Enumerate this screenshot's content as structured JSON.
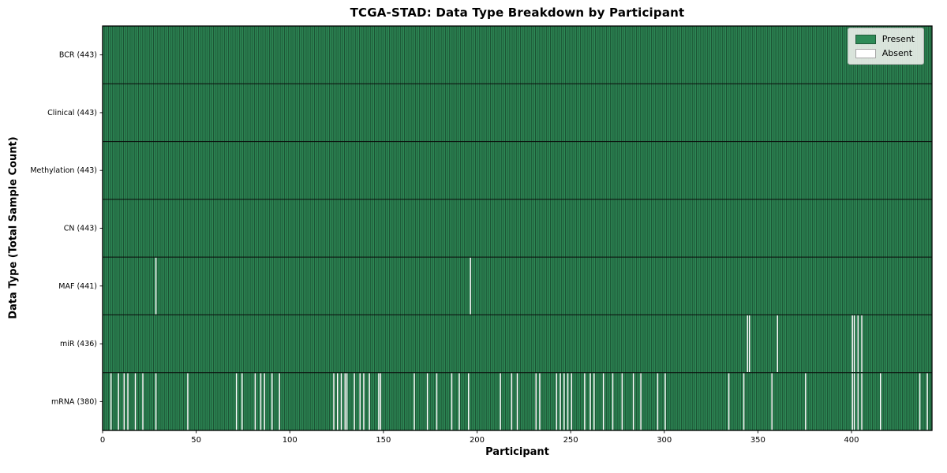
{
  "chart_data": {
    "type": "heatmap",
    "title": "TCGA-STAD: Data Type Breakdown by Participant",
    "xlabel": "Participant",
    "ylabel": "Data Type (Total Sample Count)",
    "xlim": [
      0,
      443
    ],
    "x_ticks": [
      0,
      50,
      100,
      150,
      200,
      250,
      300,
      350,
      400
    ],
    "n_participants": 443,
    "grid": false,
    "legend": {
      "position": "upper right",
      "entries": [
        {
          "label": "Present",
          "color": "#2e8b57"
        },
        {
          "label": "Absent",
          "color": "#ffffff"
        }
      ]
    },
    "colors": {
      "present": "#2e8b57",
      "absent": "#ffffff",
      "bar_edge": "rgba(0,0,0,0.50)",
      "axis": "#000000",
      "legend_bg": "rgba(242,244,240,0.88)",
      "legend_border": "#b5b5b5"
    },
    "rows": [
      {
        "label": "BCR (443)",
        "data_type": "BCR",
        "present_count": 443,
        "absent_participants": []
      },
      {
        "label": "Clinical (443)",
        "data_type": "Clinical",
        "present_count": 443,
        "absent_participants": []
      },
      {
        "label": "Methylation (443)",
        "data_type": "Methylation",
        "present_count": 443,
        "absent_participants": []
      },
      {
        "label": "CN (443)",
        "data_type": "CN",
        "present_count": 443,
        "absent_participants": []
      },
      {
        "label": "MAF (441)",
        "data_type": "MAF",
        "present_count": 441,
        "absent_participants": [
          28,
          196
        ]
      },
      {
        "label": "miR (436)",
        "data_type": "miR",
        "present_count": 436,
        "absent_participants": [
          344,
          345,
          360,
          400,
          401,
          403,
          405
        ]
      },
      {
        "label": "mRNA (380)",
        "data_type": "mRNA",
        "present_count": 380,
        "absent_participants": [
          4,
          8,
          11,
          13,
          17,
          21,
          28,
          45,
          71,
          74,
          81,
          84,
          86,
          90,
          94,
          123,
          125,
          127,
          129,
          130,
          134,
          137,
          139,
          142,
          147,
          148,
          166,
          173,
          178,
          186,
          190,
          195,
          212,
          218,
          221,
          231,
          233,
          242,
          244,
          246,
          248,
          250,
          257,
          260,
          262,
          267,
          272,
          277,
          283,
          287,
          296,
          300,
          334,
          342,
          357,
          375,
          400,
          401,
          403,
          405,
          415,
          436,
          440
        ]
      }
    ]
  }
}
